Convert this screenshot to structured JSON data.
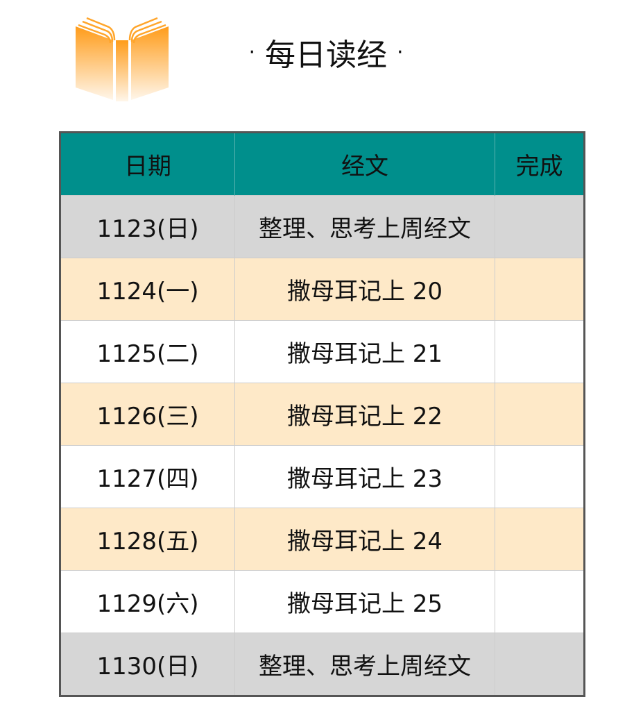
{
  "header": {
    "title": "每日读经",
    "bullet": "·",
    "logo_icon": "open-book-icon",
    "logo_color": "#ffa020"
  },
  "table": {
    "columns": [
      "日期",
      "经文",
      "完成"
    ],
    "header_color": "#008f8c",
    "rows": [
      {
        "date": "1123(日)",
        "scripture": "整理、思考上周经文",
        "done": "",
        "style": "gray"
      },
      {
        "date": "1124(一)",
        "scripture": "撒母耳记上 20",
        "done": "",
        "style": "peach"
      },
      {
        "date": "1125(二)",
        "scripture": "撒母耳记上 21",
        "done": "",
        "style": "white"
      },
      {
        "date": "1126(三)",
        "scripture": "撒母耳记上 22",
        "done": "",
        "style": "peach"
      },
      {
        "date": "1127(四)",
        "scripture": "撒母耳记上 23",
        "done": "",
        "style": "white"
      },
      {
        "date": "1128(五)",
        "scripture": "撒母耳记上 24",
        "done": "",
        "style": "peach"
      },
      {
        "date": "1129(六)",
        "scripture": "撒母耳记上 25",
        "done": "",
        "style": "white"
      },
      {
        "date": "1130(日)",
        "scripture": "整理、思考上周经文",
        "done": "",
        "style": "gray"
      }
    ]
  }
}
